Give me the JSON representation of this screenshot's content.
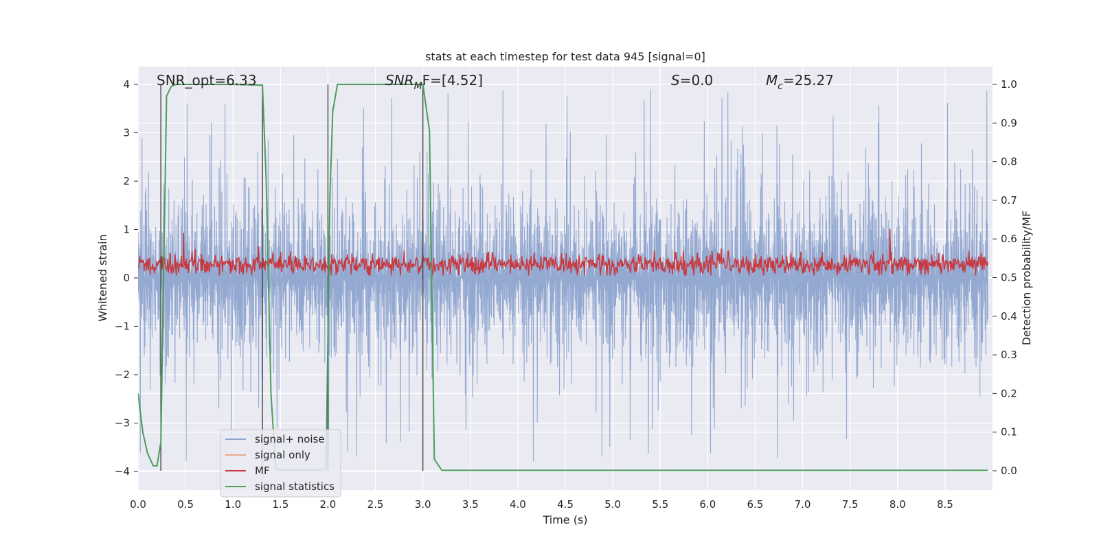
{
  "chart_data": {
    "type": "line",
    "title": "stats at each timestep for test data 945 [signal=0]",
    "xlabel": "Time (s)",
    "ylabel_left": "Whitened strain",
    "ylabel_right": "Detection probability/MF",
    "xlim": [
      0.0,
      9.0
    ],
    "ylim_left": [
      -4.4,
      4.4
    ],
    "ylim_right": [
      -0.05,
      1.05
    ],
    "x_ticks": [
      "0.0",
      "0.5",
      "1.0",
      "1.5",
      "2.0",
      "2.5",
      "3.0",
      "3.5",
      "4.0",
      "4.5",
      "5.0",
      "5.5",
      "6.0",
      "6.5",
      "7.0",
      "7.5",
      "8.0",
      "8.5"
    ],
    "y_ticks_left": [
      "4",
      "3",
      "2",
      "1",
      "0",
      "−1",
      "−2",
      "−3",
      "−4"
    ],
    "y_ticks_right": [
      "1.0",
      "0.9",
      "0.8",
      "0.7",
      "0.6",
      "0.5",
      "0.4",
      "0.3",
      "0.2",
      "0.1",
      "0.0"
    ],
    "annotations": {
      "snr_opt": "SNR_opt=6.33",
      "snr_mf_main": "SNR",
      "snr_mf_sub": "M",
      "snr_mf_rest": "F=[4.52]",
      "s_var": "S",
      "s_rest": "=0.0",
      "mc_var": "M",
      "mc_sub": "c",
      "mc_rest": "=25.27"
    },
    "legend": [
      {
        "label": "signal+ noise",
        "color": "#8fa5cf"
      },
      {
        "label": "signal only",
        "color": "#e8a88a"
      },
      {
        "label": "MF",
        "color": "#c8383e"
      },
      {
        "label": "signal statistics",
        "color": "#4a9d5a"
      }
    ],
    "vertical_markers": [
      0.24,
      1.31,
      2.0,
      3.0
    ],
    "series": [
      {
        "name": "signal statistics",
        "axis": "right",
        "x": [
          0.0,
          0.05,
          0.1,
          0.16,
          0.2,
          0.24,
          0.3,
          0.35,
          0.4,
          0.5,
          1.0,
          1.31,
          1.35,
          1.4,
          1.45,
          1.5,
          1.9,
          1.98,
          2.02,
          2.05,
          2.1,
          2.2,
          2.6,
          3.0,
          3.07,
          3.12,
          3.2,
          3.3,
          4.0,
          5.0,
          6.0,
          7.0,
          8.0,
          8.95
        ],
        "y": [
          0.2,
          0.1,
          0.045,
          0.013,
          0.013,
          0.075,
          0.97,
          0.995,
          1.0,
          1.0,
          1.0,
          0.998,
          0.75,
          0.2,
          0.005,
          0.002,
          0.002,
          0.005,
          0.7,
          0.93,
          1.0,
          1.0,
          1.0,
          1.0,
          0.88,
          0.03,
          0.001,
          0.001,
          0.001,
          0.001,
          0.001,
          0.001,
          0.001,
          0.001
        ]
      },
      {
        "name": "signal+ noise",
        "axis": "left",
        "envelope_upper_typical": 1.7,
        "envelope_lower_typical": -1.7,
        "peak_max": 4.0,
        "peak_min": -3.95
      },
      {
        "name": "MF",
        "axis": "left",
        "mean": 0.28,
        "band": [
          0.05,
          0.55
        ],
        "peaks": [
          {
            "x": 0.48,
            "y": 0.93
          },
          {
            "x": 7.92,
            "y": 1.02
          }
        ]
      }
    ],
    "grid": true,
    "legend_position": "lower-left"
  }
}
